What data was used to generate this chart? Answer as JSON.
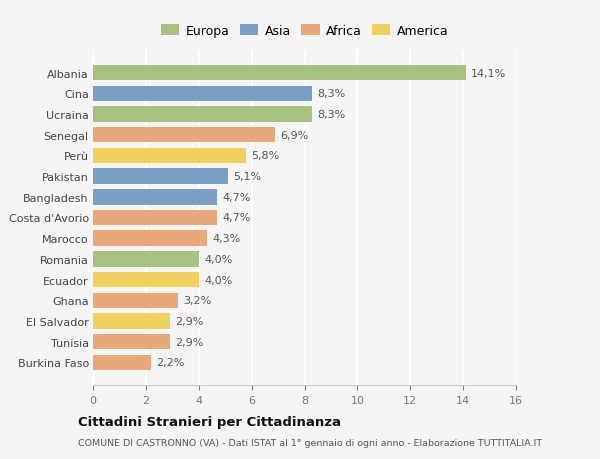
{
  "categories": [
    "Albania",
    "Cina",
    "Ucraina",
    "Senegal",
    "Perù",
    "Pakistan",
    "Bangladesh",
    "Costa d'Avorio",
    "Marocco",
    "Romania",
    "Ecuador",
    "Ghana",
    "El Salvador",
    "Tunisia",
    "Burkina Faso"
  ],
  "values": [
    14.1,
    8.3,
    8.3,
    6.9,
    5.8,
    5.1,
    4.7,
    4.7,
    4.3,
    4.0,
    4.0,
    3.2,
    2.9,
    2.9,
    2.2
  ],
  "labels": [
    "14,1%",
    "8,3%",
    "8,3%",
    "6,9%",
    "5,8%",
    "5,1%",
    "4,7%",
    "4,7%",
    "4,3%",
    "4,0%",
    "4,0%",
    "3,2%",
    "2,9%",
    "2,9%",
    "2,2%"
  ],
  "continents": [
    "Europa",
    "Asia",
    "Europa",
    "Africa",
    "America",
    "Asia",
    "Asia",
    "Africa",
    "Africa",
    "Europa",
    "America",
    "Africa",
    "America",
    "Africa",
    "Africa"
  ],
  "colors": {
    "Europa": "#a8c080",
    "Asia": "#7a9fc4",
    "Africa": "#e8a87c",
    "America": "#f0d060"
  },
  "legend_order": [
    "Europa",
    "Asia",
    "Africa",
    "America"
  ],
  "title": "Cittadini Stranieri per Cittadinanza",
  "subtitle": "COMUNE DI CASTRONNO (VA) - Dati ISTAT al 1° gennaio di ogni anno - Elaborazione TUTTITALIA.IT",
  "xlim": [
    0,
    16
  ],
  "xticks": [
    0,
    2,
    4,
    6,
    8,
    10,
    12,
    14,
    16
  ],
  "background_color": "#f5f5f5",
  "grid_color": "#ffffff",
  "bar_height": 0.75
}
